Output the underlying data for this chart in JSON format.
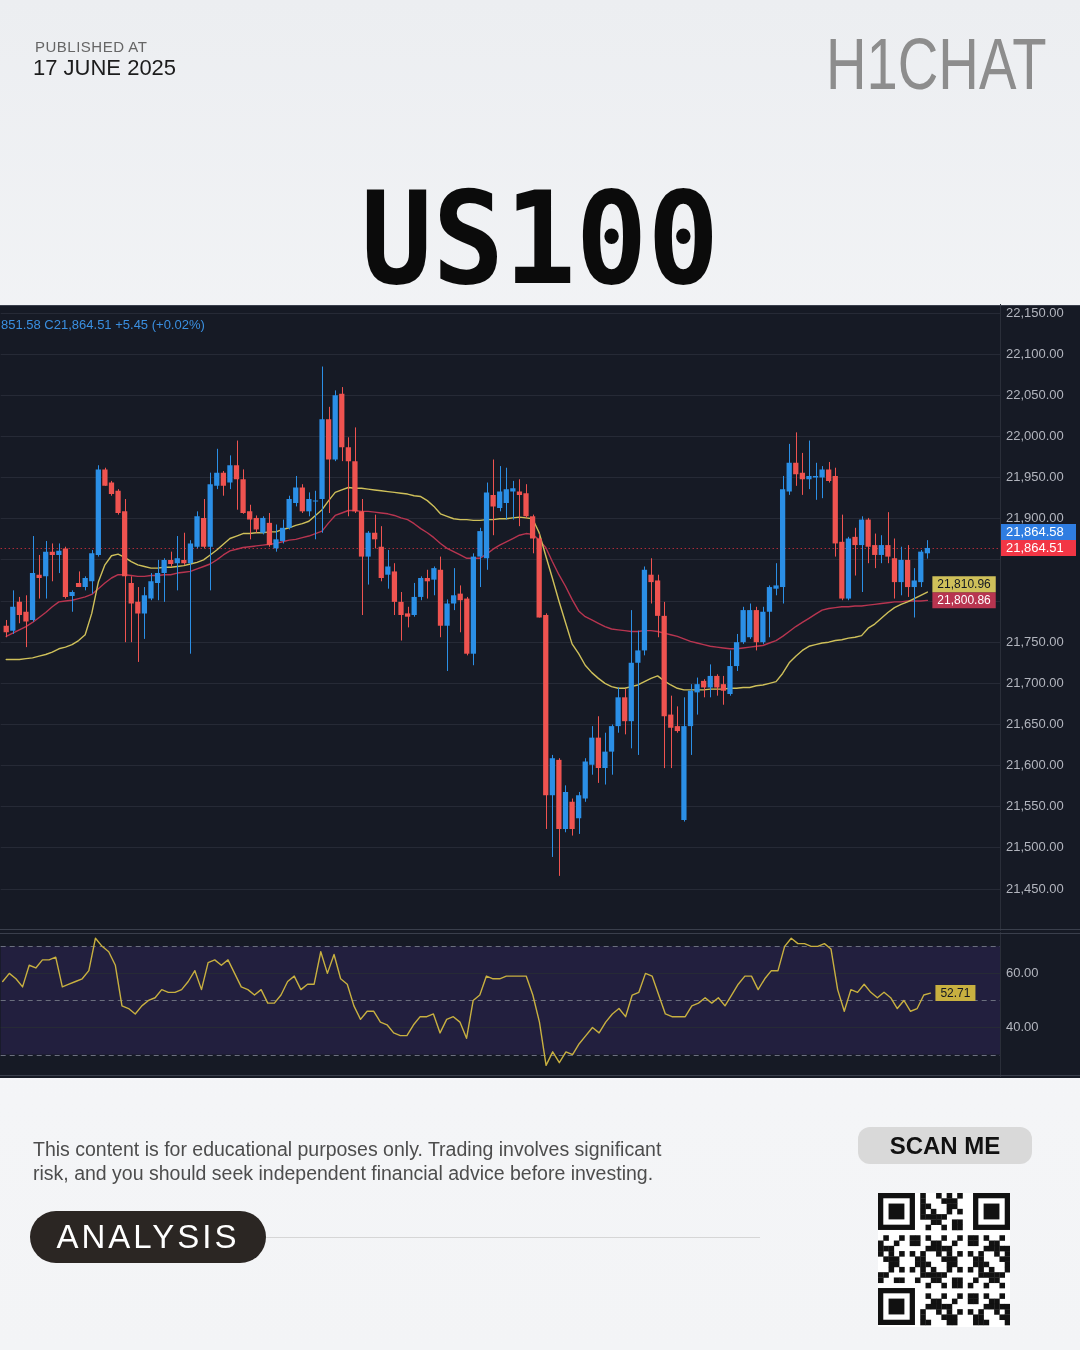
{
  "chart_data": [
    {
      "type": "candlestick",
      "title": "US100",
      "annotations": [
        "PUBLISHED AT",
        "17 JUNE 2025",
        "H1CHAT",
        "851.58 C21,864.51 +5.45 (+0.02%)",
        "21,864.58",
        "This content is for educational purposes only. Trading involves significant risk, and you should seek independent financial advice before investing.",
        "ANALYSIS",
        "SCAN ME"
      ],
      "categories": [
        null,
        null,
        null,
        null,
        null,
        null,
        null,
        null,
        null,
        null,
        null,
        null,
        null,
        null,
        null,
        null,
        null,
        null,
        null,
        null,
        null,
        null,
        null,
        null,
        null,
        null,
        null,
        null,
        null,
        null,
        null,
        null,
        null,
        null,
        null,
        null,
        null,
        null,
        null,
        null,
        null,
        null,
        null,
        null,
        null,
        null,
        null,
        null,
        null,
        null,
        null,
        null,
        null,
        null,
        null,
        null,
        null,
        null,
        null,
        null,
        null,
        null,
        null,
        null,
        null,
        null,
        null,
        null,
        null,
        null,
        null,
        null,
        null,
        null,
        null,
        null,
        null,
        null,
        null,
        null,
        null,
        null,
        null,
        null,
        null,
        null,
        null,
        null,
        null,
        null,
        null,
        null,
        null,
        null,
        null,
        null,
        null,
        null,
        null,
        null,
        null,
        null,
        null,
        null,
        null,
        null,
        null,
        null,
        null,
        null,
        null,
        null,
        null,
        null,
        null,
        null,
        null,
        null,
        null,
        null,
        null,
        null,
        null,
        null,
        null,
        null,
        null,
        null,
        null,
        null,
        null,
        null,
        null,
        null,
        null,
        null,
        null,
        null,
        null,
        null,
        null
      ],
      "ohlc": [
        [
          21770,
          21777,
          21756,
          21762
        ],
        [
          21764,
          21813,
          21760,
          21793
        ],
        [
          21799,
          21805,
          21773,
          21783
        ],
        [
          21787,
          21807,
          21744,
          21775
        ],
        [
          21777,
          21879,
          21775,
          21834
        ],
        [
          21832,
          21856,
          21803,
          21828
        ],
        [
          21830,
          21873,
          21803,
          21860
        ],
        [
          21860,
          21870,
          21824,
          21856
        ],
        [
          21856,
          21870,
          21834,
          21861
        ],
        [
          21864,
          21866,
          21803,
          21805
        ],
        [
          21806,
          21813,
          21787,
          21811
        ],
        [
          21822,
          21836,
          21817,
          21817
        ],
        [
          21817,
          21830,
          21813,
          21828
        ],
        [
          21824,
          21862,
          21809,
          21858
        ],
        [
          21856,
          21965,
          21854,
          21960
        ],
        [
          21960,
          21962,
          21940,
          21940
        ],
        [
          21944,
          21946,
          21928,
          21930
        ],
        [
          21934,
          21936,
          21905,
          21907
        ],
        [
          21909,
          21924,
          21750,
          21830
        ],
        [
          21822,
          21830,
          21750,
          21797
        ],
        [
          21799,
          21817,
          21726,
          21785
        ],
        [
          21785,
          21817,
          21754,
          21807
        ],
        [
          21803,
          21834,
          21801,
          21824
        ],
        [
          21822,
          21850,
          21801,
          21834
        ],
        [
          21834,
          21852,
          21799,
          21850
        ],
        [
          21850,
          21860,
          21842,
          21845
        ],
        [
          21846,
          21879,
          21813,
          21852
        ],
        [
          21850,
          21883,
          21844,
          21846
        ],
        [
          21846,
          21874,
          21736,
          21870
        ],
        [
          21866,
          21909,
          21864,
          21903
        ],
        [
          21901,
          21924,
          21864,
          21866
        ],
        [
          21866,
          21956,
          21813,
          21942
        ],
        [
          21940,
          21985,
          21936,
          21956
        ],
        [
          21956,
          21958,
          21928,
          21940
        ],
        [
          21944,
          21977,
          21936,
          21965
        ],
        [
          21965,
          21995,
          21911,
          21948
        ],
        [
          21948,
          21960,
          21906,
          21907
        ],
        [
          21909,
          21917,
          21875,
          21899
        ],
        [
          21901,
          21904,
          21883,
          21887
        ],
        [
          21883,
          21903,
          21881,
          21901
        ],
        [
          21895,
          21907,
          21866,
          21868
        ],
        [
          21864,
          21893,
          21860,
          21875
        ],
        [
          21873,
          21899,
          21870,
          21889
        ],
        [
          21889,
          21928,
          21887,
          21924
        ],
        [
          21919,
          21952,
          21915,
          21938
        ],
        [
          21938,
          21942,
          21907,
          21909
        ],
        [
          21909,
          21932,
          21903,
          21924
        ],
        [
          21921,
          21934,
          21875,
          21922
        ],
        [
          21924,
          22085,
          21883,
          22021
        ],
        [
          22021,
          22036,
          21907,
          21972
        ],
        [
          21972,
          22056,
          21970,
          22050
        ],
        [
          22052,
          22060,
          21970,
          21987
        ],
        [
          21987,
          21999,
          21903,
          21970
        ],
        [
          21970,
          22011,
          21907,
          21909
        ],
        [
          21909,
          21924,
          21783,
          21854
        ],
        [
          21854,
          21885,
          21820,
          21883
        ],
        [
          21883,
          21905,
          21864,
          21875
        ],
        [
          21866,
          21891,
          21824,
          21828
        ],
        [
          21832,
          21862,
          21815,
          21842
        ],
        [
          21836,
          21846,
          21783,
          21799
        ],
        [
          21799,
          21811,
          21752,
          21783
        ],
        [
          21785,
          21793,
          21768,
          21781
        ],
        [
          21783,
          21822,
          21781,
          21805
        ],
        [
          21805,
          21830,
          21801,
          21828
        ],
        [
          21828,
          21838,
          21803,
          21824
        ],
        [
          21826,
          21842,
          21807,
          21840
        ],
        [
          21838,
          21854,
          21756,
          21770
        ],
        [
          21770,
          21802,
          21715,
          21797
        ],
        [
          21797,
          21840,
          21789,
          21807
        ],
        [
          21809,
          21819,
          21762,
          21801
        ],
        [
          21803,
          21805,
          21734,
          21736
        ],
        [
          21736,
          21858,
          21722,
          21854
        ],
        [
          21854,
          21889,
          21817,
          21885
        ],
        [
          21852,
          21944,
          21838,
          21932
        ],
        [
          21929,
          21972,
          21880,
          21915
        ],
        [
          21913,
          21964,
          21909,
          21933
        ],
        [
          21919,
          21962,
          21899,
          21936
        ],
        [
          21933,
          21946,
          21899,
          21937
        ],
        [
          21933,
          21948,
          21891,
          21929
        ],
        [
          21931,
          21942,
          21901,
          21903
        ],
        [
          21903,
          21905,
          21858,
          21876
        ],
        [
          21876,
          21882,
          21780,
          21780
        ],
        [
          21783,
          21785,
          21523,
          21564
        ],
        [
          21564,
          21613,
          21489,
          21609
        ],
        [
          21607,
          21609,
          21466,
          21523
        ],
        [
          21523,
          21576,
          21519,
          21568
        ],
        [
          21556,
          21560,
          21515,
          21523
        ],
        [
          21536,
          21568,
          21517,
          21564
        ],
        [
          21560,
          21609,
          21556,
          21605
        ],
        [
          21601,
          21648,
          21589,
          21634
        ],
        [
          21634,
          21660,
          21579,
          21597
        ],
        [
          21597,
          21640,
          21577,
          21617
        ],
        [
          21617,
          21650,
          21589,
          21648
        ],
        [
          21648,
          21695,
          21640,
          21683
        ],
        [
          21683,
          21693,
          21638,
          21654
        ],
        [
          21654,
          21789,
          21621,
          21725
        ],
        [
          21725,
          21764,
          21613,
          21740
        ],
        [
          21740,
          21842,
          21734,
          21838
        ],
        [
          21832,
          21852,
          21797,
          21823
        ],
        [
          21825,
          21832,
          21756,
          21782
        ],
        [
          21782,
          21799,
          21597,
          21660
        ],
        [
          21662,
          21685,
          21597,
          21646
        ],
        [
          21648,
          21672,
          21640,
          21642
        ],
        [
          21534,
          21683,
          21532,
          21648
        ],
        [
          21648,
          21699,
          21613,
          21691
        ],
        [
          21689,
          21707,
          21662,
          21699
        ],
        [
          21703,
          21705,
          21683,
          21695
        ],
        [
          21695,
          21723,
          21683,
          21709
        ],
        [
          21709,
          21711,
          21685,
          21695
        ],
        [
          21699,
          21709,
          21674,
          21691
        ],
        [
          21687,
          21740,
          21685,
          21721
        ],
        [
          21721,
          21760,
          21715,
          21750
        ],
        [
          21750,
          21793,
          21748,
          21789
        ],
        [
          21756,
          21797,
          21754,
          21789
        ],
        [
          21789,
          21793,
          21740,
          21750
        ],
        [
          21750,
          21793,
          21748,
          21787
        ],
        [
          21787,
          21819,
          21756,
          21817
        ],
        [
          21815,
          21846,
          21807,
          21819
        ],
        [
          21817,
          21952,
          21797,
          21936
        ],
        [
          21933,
          21991,
          21929,
          21968
        ],
        [
          21968,
          22005,
          21940,
          21954
        ],
        [
          21956,
          21980,
          21929,
          21948
        ],
        [
          21948,
          21995,
          21936,
          21952
        ],
        [
          21950,
          21968,
          21923,
          21952
        ],
        [
          21950,
          21964,
          21925,
          21960
        ],
        [
          21960,
          21969,
          21944,
          21946
        ],
        [
          21952,
          21962,
          21854,
          21870
        ],
        [
          21872,
          21905,
          21801,
          21803
        ],
        [
          21803,
          21878,
          21801,
          21876
        ],
        [
          21878,
          21889,
          21831,
          21868
        ],
        [
          21868,
          21903,
          21811,
          21899
        ],
        [
          21899,
          21901,
          21846,
          21866
        ],
        [
          21868,
          21882,
          21840,
          21856
        ],
        [
          21856,
          21880,
          21846,
          21868
        ],
        [
          21868,
          21908,
          21846,
          21854
        ],
        [
          21852,
          21876,
          21803,
          21823
        ],
        [
          21823,
          21866,
          21807,
          21850
        ],
        [
          21850,
          21868,
          21805,
          21817
        ],
        [
          21817,
          21840,
          21780,
          21825
        ],
        [
          21823,
          21862,
          21817,
          21860
        ],
        [
          21858,
          21874,
          21851.58,
          21864.51
        ]
      ],
      "colors": [
        "#ef5350",
        "#2b8fe6",
        "#ef5350",
        "#ef5350",
        "#2b8fe6",
        "#ef5350",
        "#2b8fe6",
        "#ef5350",
        "#2b8fe6",
        "#ef5350",
        "#2b8fe6",
        "#ef5350",
        "#2b8fe6",
        "#2b8fe6",
        "#2b8fe6",
        "#ef5350",
        "#ef5350",
        "#ef5350",
        "#ef5350",
        "#ef5350",
        "#ef5350",
        "#2b8fe6",
        "#2b8fe6",
        "#2b8fe6",
        "#2b8fe6",
        "#ef5350",
        "#2b8fe6",
        "#ef5350",
        "#2b8fe6",
        "#2b8fe6",
        "#ef5350",
        "#2b8fe6",
        "#2b8fe6",
        "#ef5350",
        "#2b8fe6",
        "#ef5350",
        "#ef5350",
        "#ef5350",
        "#ef5350",
        "#2b8fe6",
        "#ef5350",
        "#2b8fe6",
        "#2b8fe6",
        "#2b8fe6",
        "#2b8fe6",
        "#ef5350",
        "#2b8fe6",
        "#2b8fe6",
        "#2b8fe6",
        "#ef5350",
        "#2b8fe6",
        "#ef5350",
        "#ef5350",
        "#ef5350",
        "#ef5350",
        "#2b8fe6",
        "#ef5350",
        "#ef5350",
        "#2b8fe6",
        "#ef5350",
        "#ef5350",
        "#ef5350",
        "#2b8fe6",
        "#2b8fe6",
        "#ef5350",
        "#2b8fe6",
        "#ef5350",
        "#2b8fe6",
        "#2b8fe6",
        "#ef5350",
        "#ef5350",
        "#2b8fe6",
        "#2b8fe6",
        "#2b8fe6",
        "#ef5350",
        "#2b8fe6",
        "#2b8fe6",
        "#2b8fe6",
        "#ef5350",
        "#ef5350",
        "#ef5350",
        "#ef5350",
        "#ef5350",
        "#2b8fe6",
        "#ef5350",
        "#2b8fe6",
        "#ef5350",
        "#2b8fe6",
        "#2b8fe6",
        "#2b8fe6",
        "#ef5350",
        "#2b8fe6",
        "#2b8fe6",
        "#2b8fe6",
        "#ef5350",
        "#2b8fe6",
        "#2b8fe6",
        "#2b8fe6",
        "#ef5350",
        "#ef5350",
        "#ef5350",
        "#ef5350",
        "#ef5350",
        "#2b8fe6",
        "#2b8fe6",
        "#2b8fe6",
        "#ef5350",
        "#2b8fe6",
        "#ef5350",
        "#ef5350",
        "#2b8fe6",
        "#2b8fe6",
        "#2b8fe6",
        "#2b8fe6",
        "#ef5350",
        "#2b8fe6",
        "#2b8fe6",
        "#2b8fe6",
        "#2b8fe6",
        "#2b8fe6",
        "#ef5350",
        "#ef5350",
        "#2b8fe6",
        "#2b8fe6",
        "#2b8fe6",
        "#ef5350",
        "#ef5350",
        "#ef5350",
        "#2b8fe6",
        "#ef5350",
        "#2b8fe6",
        "#ef5350",
        "#ef5350",
        "#2b8fe6",
        "#ef5350",
        "#ef5350",
        "#2b8fe6",
        "#ef5350",
        "#2b8fe6",
        "#2b8fe6",
        "#2b8fe6"
      ],
      "series": [
        {
          "type": "line",
          "color": "#cfc05a",
          "values": [
            21729,
            21729,
            21729,
            21730,
            21731,
            21733,
            21735,
            21738,
            21742,
            21744,
            21747,
            21752,
            21759,
            21785,
            21823,
            21844,
            21855,
            21857,
            21853,
            21848,
            21844,
            21842,
            21840,
            21840,
            21841,
            21841,
            21842,
            21843,
            21845,
            21847,
            21850,
            21856,
            21862,
            21869,
            21876,
            21879,
            21882,
            21882,
            21883,
            21883,
            21884,
            21884,
            21887,
            21889,
            21892,
            21894,
            21897,
            21904,
            21911,
            21922,
            21932,
            21935,
            21938,
            21937,
            21937,
            21936,
            21935,
            21934,
            21933,
            21932,
            21931,
            21930,
            21928,
            21927,
            21922,
            21915,
            21906,
            21903,
            21900,
            21899,
            21899,
            21898,
            21898,
            21899,
            21899,
            21900,
            21900,
            21901,
            21902,
            21901,
            21900,
            21883,
            21855,
            21828,
            21800,
            21774,
            21748,
            21736,
            21722,
            21713,
            21706,
            21700,
            21696,
            21694,
            21694,
            21696,
            21698,
            21702,
            21706,
            21709,
            21703,
            21698,
            21694,
            21692,
            21692,
            21692,
            21692,
            21693,
            21693,
            21693,
            21694,
            21694,
            21695,
            21695,
            21697,
            21698,
            21700,
            21702,
            21712,
            21725,
            21733,
            21740,
            21745,
            21747,
            21749,
            21750,
            21752,
            21753,
            21755,
            21756,
            21758,
            21767,
            21772,
            21779,
            21786,
            21792,
            21796,
            21799,
            21803,
            21807,
            21810.96
          ],
          "value_labels": [
            null,
            null,
            null,
            null,
            null,
            null,
            null,
            null,
            null,
            null,
            null,
            null,
            null,
            null,
            null,
            null,
            null,
            null,
            null,
            null,
            null,
            null,
            null,
            null,
            null,
            null,
            null,
            null,
            null,
            null,
            null,
            null,
            null,
            null,
            null,
            null,
            null,
            null,
            null,
            null,
            null,
            null,
            null,
            null,
            null,
            null,
            null,
            null,
            null,
            null,
            null,
            null,
            null,
            null,
            null,
            null,
            null,
            null,
            null,
            null,
            null,
            null,
            null,
            null,
            null,
            null,
            null,
            null,
            null,
            null,
            null,
            null,
            null,
            null,
            null,
            null,
            null,
            null,
            null,
            null,
            null,
            null,
            null,
            null,
            null,
            null,
            null,
            null,
            null,
            null,
            null,
            null,
            null,
            null,
            null,
            null,
            null,
            null,
            null,
            null,
            null,
            null,
            null,
            null,
            null,
            null,
            null,
            null,
            null,
            null,
            null,
            null,
            null,
            null,
            null,
            null,
            null,
            null,
            null,
            null,
            null,
            null,
            null,
            null,
            null,
            null,
            null,
            null,
            null,
            null,
            null,
            null,
            null,
            null,
            null,
            null,
            null,
            null,
            null,
            null,
            "21,810.96"
          ]
        },
        {
          "type": "line",
          "color": "#b83550",
          "values": [
            21757,
            21761,
            21765,
            21769,
            21774,
            21780,
            21786,
            21793,
            21799,
            21800,
            21801,
            21803,
            21805,
            21808,
            21815,
            21822,
            21828,
            21832,
            21832,
            21831,
            21830,
            21830,
            21831,
            21831,
            21832,
            21832,
            21834,
            21835,
            21836,
            21839,
            21842,
            21845,
            21850,
            21856,
            21861,
            21863,
            21865,
            21866,
            21867,
            21868,
            21869,
            21870,
            21872,
            21874,
            21875,
            21877,
            21879,
            21882,
            21885,
            21895,
            21904,
            21907,
            21910,
            21910,
            21909,
            21909,
            21908,
            21907,
            21906,
            21904,
            21901,
            21899,
            21894,
            21888,
            21883,
            21877,
            21870,
            21864,
            21860,
            21856,
            21852,
            21852,
            21852,
            21857,
            21863,
            21868,
            21872,
            21876,
            21880,
            21882,
            21881,
            21874,
            21865,
            21848,
            21832,
            21818,
            21802,
            21788,
            21781,
            21777,
            21773,
            21769,
            21766,
            21765,
            21764,
            21763,
            21763,
            21764,
            21764,
            21763,
            21761,
            21759,
            21757,
            21754,
            21751,
            21749,
            21747,
            21745,
            21744,
            21743,
            21742,
            21742,
            21743,
            21744,
            21745,
            21746,
            21749,
            21752,
            21757,
            21763,
            21769,
            21774,
            21779,
            21784,
            21789,
            21791,
            21792,
            21793,
            21793,
            21794,
            21794,
            21795,
            21796,
            21797,
            21798,
            21799,
            21799,
            21800,
            21800,
            21800,
            21800.86
          ],
          "value_labels": [
            null,
            null,
            null,
            null,
            null,
            null,
            null,
            null,
            null,
            null,
            null,
            null,
            null,
            null,
            null,
            null,
            null,
            null,
            null,
            null,
            null,
            null,
            null,
            null,
            null,
            null,
            null,
            null,
            null,
            null,
            null,
            null,
            null,
            null,
            null,
            null,
            null,
            null,
            null,
            null,
            null,
            null,
            null,
            null,
            null,
            null,
            null,
            null,
            null,
            null,
            null,
            null,
            null,
            null,
            null,
            null,
            null,
            null,
            null,
            null,
            null,
            null,
            null,
            null,
            null,
            null,
            null,
            null,
            null,
            null,
            null,
            null,
            null,
            null,
            null,
            null,
            null,
            null,
            null,
            null,
            null,
            null,
            null,
            null,
            null,
            null,
            null,
            null,
            null,
            null,
            null,
            null,
            null,
            null,
            null,
            null,
            null,
            null,
            null,
            null,
            null,
            null,
            null,
            null,
            null,
            null,
            null,
            null,
            null,
            null,
            null,
            null,
            null,
            null,
            null,
            null,
            null,
            null,
            null,
            null,
            null,
            null,
            null,
            null,
            null,
            null,
            null,
            null,
            null,
            null,
            null,
            null,
            null,
            null,
            null,
            null,
            null,
            null,
            null,
            null,
            "21,800.86"
          ]
        }
      ],
      "ylim": [
        21400,
        22160
      ],
      "yticks": [
        {
          "value": 22150,
          "label": "22,150.00"
        },
        {
          "value": 22100,
          "label": "22,100.00"
        },
        {
          "value": 22050,
          "label": "22,050.00"
        },
        {
          "value": 22000,
          "label": "22,000.00"
        },
        {
          "value": 21950,
          "label": "21,950.00"
        },
        {
          "value": 21900,
          "label": "21,900.00"
        },
        {
          "value": 21850,
          "label": null
        },
        {
          "value": 21800,
          "label": null
        },
        {
          "value": 21750,
          "label": "21,750.00"
        },
        {
          "value": 21700,
          "label": "21,700.00"
        },
        {
          "value": 21650,
          "label": "21,650.00"
        },
        {
          "value": 21600,
          "label": "21,600.00"
        },
        {
          "value": 21550,
          "label": "21,550.00"
        },
        {
          "value": 21500,
          "label": "21,500.00"
        },
        {
          "value": 21450,
          "label": "21,450.00"
        }
      ],
      "grid": "y",
      "tick_labels": "y",
      "marker": "none",
      "ref_lines": [
        {
          "axis": "y",
          "value": 21864.51,
          "label": "21,864.51",
          "color": "#f23645",
          "line_style": "dotted"
        }
      ]
    },
    {
      "type": "line",
      "categories": [
        null,
        null,
        null,
        null,
        null,
        null,
        null,
        null,
        null,
        null,
        null,
        null,
        null,
        null,
        null,
        null,
        null,
        null,
        null,
        null,
        null,
        null,
        null,
        null,
        null,
        null,
        null,
        null,
        null,
        null,
        null,
        null,
        null,
        null,
        null,
        null,
        null,
        null,
        null,
        null,
        null,
        null,
        null,
        null,
        null,
        null,
        null,
        null,
        null,
        null,
        null,
        null,
        null,
        null,
        null,
        null,
        null,
        null,
        null,
        null,
        null,
        null,
        null,
        null,
        null,
        null,
        null,
        null,
        null,
        null,
        null,
        null,
        null,
        null,
        null,
        null,
        null,
        null,
        null,
        null,
        null,
        null,
        null,
        null,
        null,
        null,
        null,
        null,
        null,
        null,
        null,
        null,
        null,
        null,
        null,
        null,
        null,
        null,
        null,
        null,
        null,
        null,
        null,
        null,
        null,
        null,
        null,
        null,
        null,
        null,
        null,
        null,
        null,
        null,
        null,
        null,
        null,
        null,
        null,
        null,
        null,
        null,
        null,
        null,
        null,
        null,
        null,
        null,
        null,
        null,
        null,
        null,
        null,
        null,
        null,
        null,
        null,
        null,
        null,
        null,
        null
      ],
      "series": [
        {
          "color": "#c8b040",
          "values": [
            57,
            60,
            58,
            55,
            63,
            62,
            65,
            65,
            66,
            55,
            56,
            57,
            58,
            61,
            73,
            70,
            68,
            63,
            48,
            47,
            45,
            48,
            50,
            51,
            54,
            53,
            53,
            54,
            57,
            61,
            54,
            64,
            65,
            63,
            65,
            60,
            55,
            54,
            52,
            54,
            49,
            49,
            52,
            57,
            59,
            54,
            56,
            56,
            68,
            60,
            67,
            58,
            56,
            48,
            43,
            46,
            46,
            42,
            41,
            38,
            37,
            37,
            41,
            44,
            44,
            45,
            38,
            43,
            44,
            42,
            36,
            50,
            52,
            59,
            58,
            58,
            59,
            59,
            59,
            59,
            52,
            42,
            26,
            31,
            27,
            31,
            30,
            34,
            37,
            40,
            38,
            42,
            45,
            47,
            44,
            52,
            53,
            60,
            59,
            52,
            45,
            44,
            44,
            44,
            48,
            49,
            51,
            49,
            51,
            48,
            52,
            56,
            59,
            59,
            54,
            58,
            61,
            61,
            70,
            73,
            71,
            71,
            70,
            70,
            71,
            69,
            54,
            46,
            54,
            53,
            56,
            53,
            51,
            53,
            51,
            47,
            50,
            46,
            47,
            52,
            52.71
          ],
          "value_labels": [
            null,
            null,
            null,
            null,
            null,
            null,
            null,
            null,
            null,
            null,
            null,
            null,
            null,
            null,
            null,
            null,
            null,
            null,
            null,
            null,
            null,
            null,
            null,
            null,
            null,
            null,
            null,
            null,
            null,
            null,
            null,
            null,
            null,
            null,
            null,
            null,
            null,
            null,
            null,
            null,
            null,
            null,
            null,
            null,
            null,
            null,
            null,
            null,
            null,
            null,
            null,
            null,
            null,
            null,
            null,
            null,
            null,
            null,
            null,
            null,
            null,
            null,
            null,
            null,
            null,
            null,
            null,
            null,
            null,
            null,
            null,
            null,
            null,
            null,
            null,
            null,
            null,
            null,
            null,
            null,
            null,
            null,
            null,
            null,
            null,
            null,
            null,
            null,
            null,
            null,
            null,
            null,
            null,
            null,
            null,
            null,
            null,
            null,
            null,
            null,
            null,
            null,
            null,
            null,
            null,
            null,
            null,
            null,
            null,
            null,
            null,
            null,
            null,
            null,
            null,
            null,
            null,
            null,
            null,
            null,
            null,
            null,
            null,
            null,
            null,
            null,
            null,
            null,
            null,
            null,
            null,
            null,
            null,
            null,
            null,
            null,
            null,
            null,
            null,
            null,
            "52.71"
          ]
        }
      ],
      "ylim": [
        22,
        75
      ],
      "yticks": [
        {
          "value": 60,
          "label": "60.00"
        },
        {
          "value": 40,
          "label": "40.00"
        }
      ],
      "grid": "y",
      "tick_labels": "y",
      "marker": "none",
      "ref_lines": [
        {
          "axis": "y",
          "value": 70,
          "color": "#6b6f7e",
          "line_style": "dashed"
        },
        {
          "axis": "y",
          "value": 50,
          "color": "#6b6f7e",
          "line_style": "dashed"
        },
        {
          "axis": "y",
          "value": 30,
          "color": "#6b6f7e",
          "line_style": "dashed"
        }
      ],
      "bands": [
        {
          "axis": "y",
          "from": 30,
          "to": 70,
          "color": "#221f3e"
        }
      ]
    }
  ]
}
